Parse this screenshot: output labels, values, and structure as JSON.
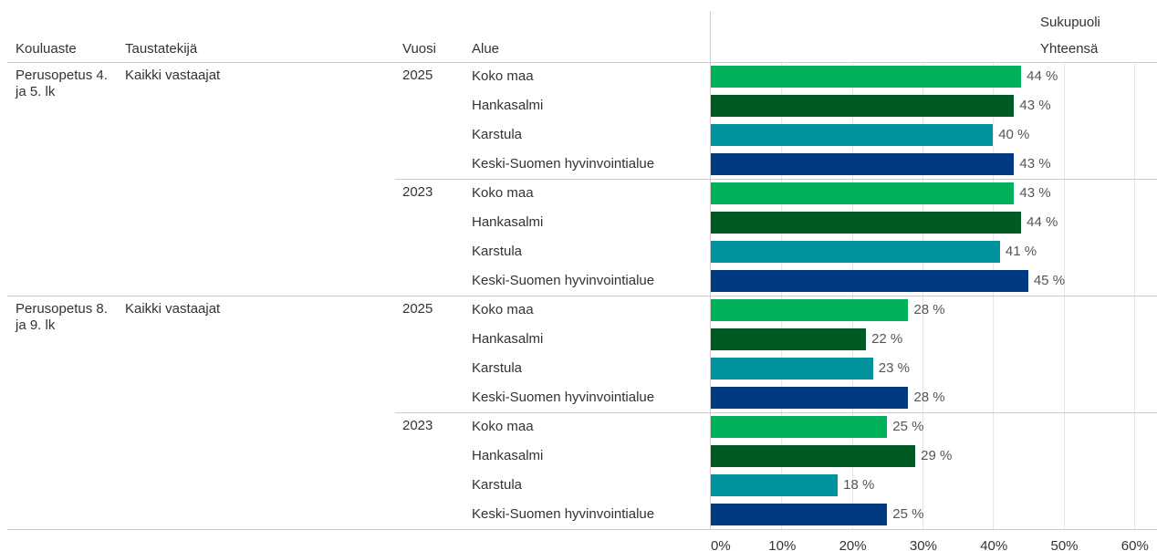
{
  "chart_data": {
    "type": "bar",
    "orientation": "horizontal",
    "headers": [
      "Kouluaste",
      "Taustatekijä",
      "Vuosi",
      "Alue"
    ],
    "column_title": "Sukupuoli",
    "column_subtitle": "Yhteensä",
    "colors": [
      "#00b05a",
      "#005a23",
      "#00939e",
      "#003a80"
    ],
    "xlim": [
      0,
      63
    ],
    "xticks": [
      {
        "value": 0,
        "label": "0%"
      },
      {
        "value": 10,
        "label": "10%"
      },
      {
        "value": 20,
        "label": "20%"
      },
      {
        "value": 30,
        "label": "30%"
      },
      {
        "value": 40,
        "label": "40%"
      },
      {
        "value": 50,
        "label": "50%"
      },
      {
        "value": 60,
        "label": "60%"
      }
    ],
    "grid": true,
    "groups": [
      {
        "level": "Perusopetus 4. ja 5. lk",
        "background": "Kaikki vastaajat",
        "years": [
          {
            "year": "2025",
            "categories": [
              "Koko maa",
              "Hankasalmi",
              "Karstula",
              "Keski-Suomen hyvinvointialue"
            ],
            "values": [
              44,
              43,
              40,
              43
            ],
            "value_labels": [
              "44 %",
              "43 %",
              "40 %",
              "43 %"
            ]
          },
          {
            "year": "2023",
            "categories": [
              "Koko maa",
              "Hankasalmi",
              "Karstula",
              "Keski-Suomen hyvinvointialue"
            ],
            "values": [
              43,
              44,
              41,
              45
            ],
            "value_labels": [
              "43 %",
              "44 %",
              "41 %",
              "45 %"
            ]
          }
        ]
      },
      {
        "level": "Perusopetus 8. ja 9. lk",
        "background": "Kaikki vastaajat",
        "years": [
          {
            "year": "2025",
            "categories": [
              "Koko maa",
              "Hankasalmi",
              "Karstula",
              "Keski-Suomen hyvinvointialue"
            ],
            "values": [
              28,
              22,
              23,
              28
            ],
            "value_labels": [
              "28 %",
              "22 %",
              "23 %",
              "28 %"
            ]
          },
          {
            "year": "2023",
            "categories": [
              "Koko maa",
              "Hankasalmi",
              "Karstula",
              "Keski-Suomen hyvinvointialue"
            ],
            "values": [
              25,
              29,
              18,
              25
            ],
            "value_labels": [
              "25 %",
              "29 %",
              "18 %",
              "25 %"
            ]
          }
        ]
      }
    ]
  }
}
